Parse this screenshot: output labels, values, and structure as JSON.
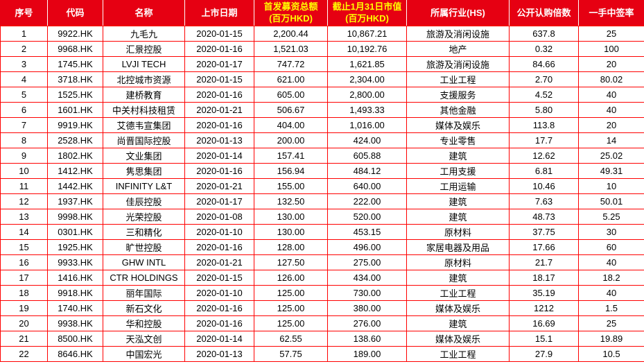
{
  "colors": {
    "header_bg": "#e60012",
    "header_text": "#ffffff",
    "header_highlight_text": "#ffff00",
    "border": "#ff0000",
    "body_text": "#000000"
  },
  "chart_data": {
    "type": "table",
    "title": "",
    "columns": [
      {
        "key": "seq",
        "label": "序号",
        "sub": "",
        "highlight": false
      },
      {
        "key": "code",
        "label": "代码",
        "sub": "",
        "highlight": false
      },
      {
        "key": "name",
        "label": "名称",
        "sub": "",
        "highlight": false
      },
      {
        "key": "list-date",
        "label": "上市日期",
        "sub": "",
        "highlight": false
      },
      {
        "key": "ipo-raise",
        "label": "首发募资总额",
        "sub": "(百万HKD)",
        "highlight": true
      },
      {
        "key": "market-cap",
        "label": "截止1月31日市值",
        "sub": "(百万HKD)",
        "highlight": true
      },
      {
        "key": "industry",
        "label": "所属行业(HS)",
        "sub": "",
        "highlight": false
      },
      {
        "key": "subscription-multiple",
        "label": "公开认购倍数",
        "sub": "",
        "highlight": false
      },
      {
        "key": "lot-win-rate",
        "label": "一手中签率",
        "sub": "",
        "highlight": false
      }
    ],
    "rows": [
      [
        "1",
        "9922.HK",
        "九毛九",
        "2020-01-15",
        "2,200.44",
        "10,867.21",
        "旅游及消闲设施",
        "637.8",
        "25"
      ],
      [
        "2",
        "9968.HK",
        "汇景控股",
        "2020-01-16",
        "1,521.03",
        "10,192.76",
        "地产",
        "0.32",
        "100"
      ],
      [
        "3",
        "1745.HK",
        "LVJI TECH",
        "2020-01-17",
        "747.72",
        "1,621.85",
        "旅游及消闲设施",
        "84.66",
        "20"
      ],
      [
        "4",
        "3718.HK",
        "北控城市资源",
        "2020-01-15",
        "621.00",
        "2,304.00",
        "工业工程",
        "2.70",
        "80.02"
      ],
      [
        "5",
        "1525.HK",
        "建桥教育",
        "2020-01-16",
        "605.00",
        "2,800.00",
        "支援服务",
        "4.52",
        "40"
      ],
      [
        "6",
        "1601.HK",
        "中关村科技租赁",
        "2020-01-21",
        "506.67",
        "1,493.33",
        "其他金融",
        "5.80",
        "40"
      ],
      [
        "7",
        "9919.HK",
        "艾德韦宣集团",
        "2020-01-16",
        "404.00",
        "1,016.00",
        "媒体及娱乐",
        "113.8",
        "20"
      ],
      [
        "8",
        "2528.HK",
        "尚晋国际控股",
        "2020-01-13",
        "200.00",
        "424.00",
        "专业零售",
        "17.7",
        "14"
      ],
      [
        "9",
        "1802.HK",
        "文业集团",
        "2020-01-14",
        "157.41",
        "605.88",
        "建筑",
        "12.62",
        "25.02"
      ],
      [
        "10",
        "1412.HK",
        "隽思集团",
        "2020-01-16",
        "156.94",
        "484.12",
        "工用支援",
        "6.81",
        "49.31"
      ],
      [
        "11",
        "1442.HK",
        "INFINITY L&T",
        "2020-01-21",
        "155.00",
        "640.00",
        "工用运输",
        "10.46",
        "10"
      ],
      [
        "12",
        "1937.HK",
        "佳辰控股",
        "2020-01-17",
        "132.50",
        "222.00",
        "建筑",
        "7.63",
        "50.01"
      ],
      [
        "13",
        "9998.HK",
        "光荣控股",
        "2020-01-08",
        "130.00",
        "520.00",
        "建筑",
        "48.73",
        "5.25"
      ],
      [
        "14",
        "0301.HK",
        "三和精化",
        "2020-01-10",
        "130.00",
        "453.15",
        "原材料",
        "37.75",
        "30"
      ],
      [
        "15",
        "1925.HK",
        "旷世控股",
        "2020-01-16",
        "128.00",
        "496.00",
        "家居电器及用品",
        "17.66",
        "60"
      ],
      [
        "16",
        "9933.HK",
        "GHW INTL",
        "2020-01-21",
        "127.50",
        "275.00",
        "原材料",
        "21.7",
        "40"
      ],
      [
        "17",
        "1416.HK",
        "CTR HOLDINGS",
        "2020-01-15",
        "126.00",
        "434.00",
        "建筑",
        "18.17",
        "18.2"
      ],
      [
        "18",
        "9918.HK",
        "丽年国际",
        "2020-01-10",
        "125.00",
        "730.00",
        "工业工程",
        "35.19",
        "40"
      ],
      [
        "19",
        "1740.HK",
        "新石文化",
        "2020-01-16",
        "125.00",
        "380.00",
        "媒体及娱乐",
        "1212",
        "1.5"
      ],
      [
        "20",
        "9938.HK",
        "华和控股",
        "2020-01-16",
        "125.00",
        "276.00",
        "建筑",
        "16.69",
        "25"
      ],
      [
        "21",
        "8500.HK",
        "天泓文创",
        "2020-01-14",
        "62.55",
        "138.60",
        "媒体及娱乐",
        "15.1",
        "19.89"
      ],
      [
        "22",
        "8646.HK",
        "中国宏光",
        "2020-01-13",
        "57.75",
        "189.00",
        "工业工程",
        "27.9",
        "10.5"
      ]
    ]
  }
}
